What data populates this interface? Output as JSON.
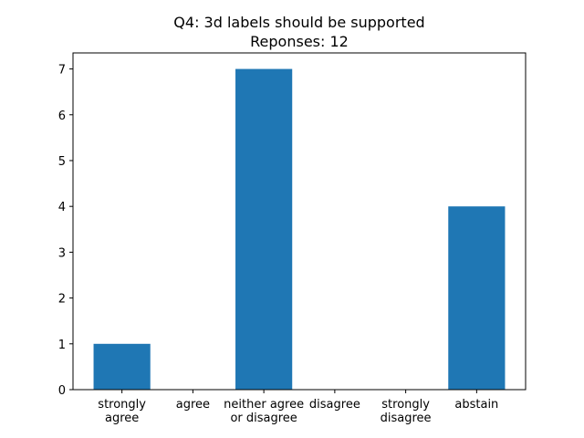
{
  "chart_data": {
    "type": "bar",
    "title_lines": [
      "Q4: 3d labels should be supported",
      "Reponses: 12"
    ],
    "categories": [
      [
        "strongly",
        "agree"
      ],
      [
        "agree"
      ],
      [
        "neither agree",
        "or disagree"
      ],
      [
        "disagree"
      ],
      [
        "strongly",
        "disagree"
      ],
      [
        "abstain"
      ]
    ],
    "values": [
      1,
      0,
      7,
      0,
      0,
      4
    ],
    "yticks": [
      "0",
      "1",
      "2",
      "3",
      "4",
      "5",
      "6",
      "7"
    ],
    "ylim": [
      0,
      7.35
    ],
    "bar_color": "#1f77b4",
    "grid": false,
    "xlabel": "",
    "ylabel": ""
  }
}
